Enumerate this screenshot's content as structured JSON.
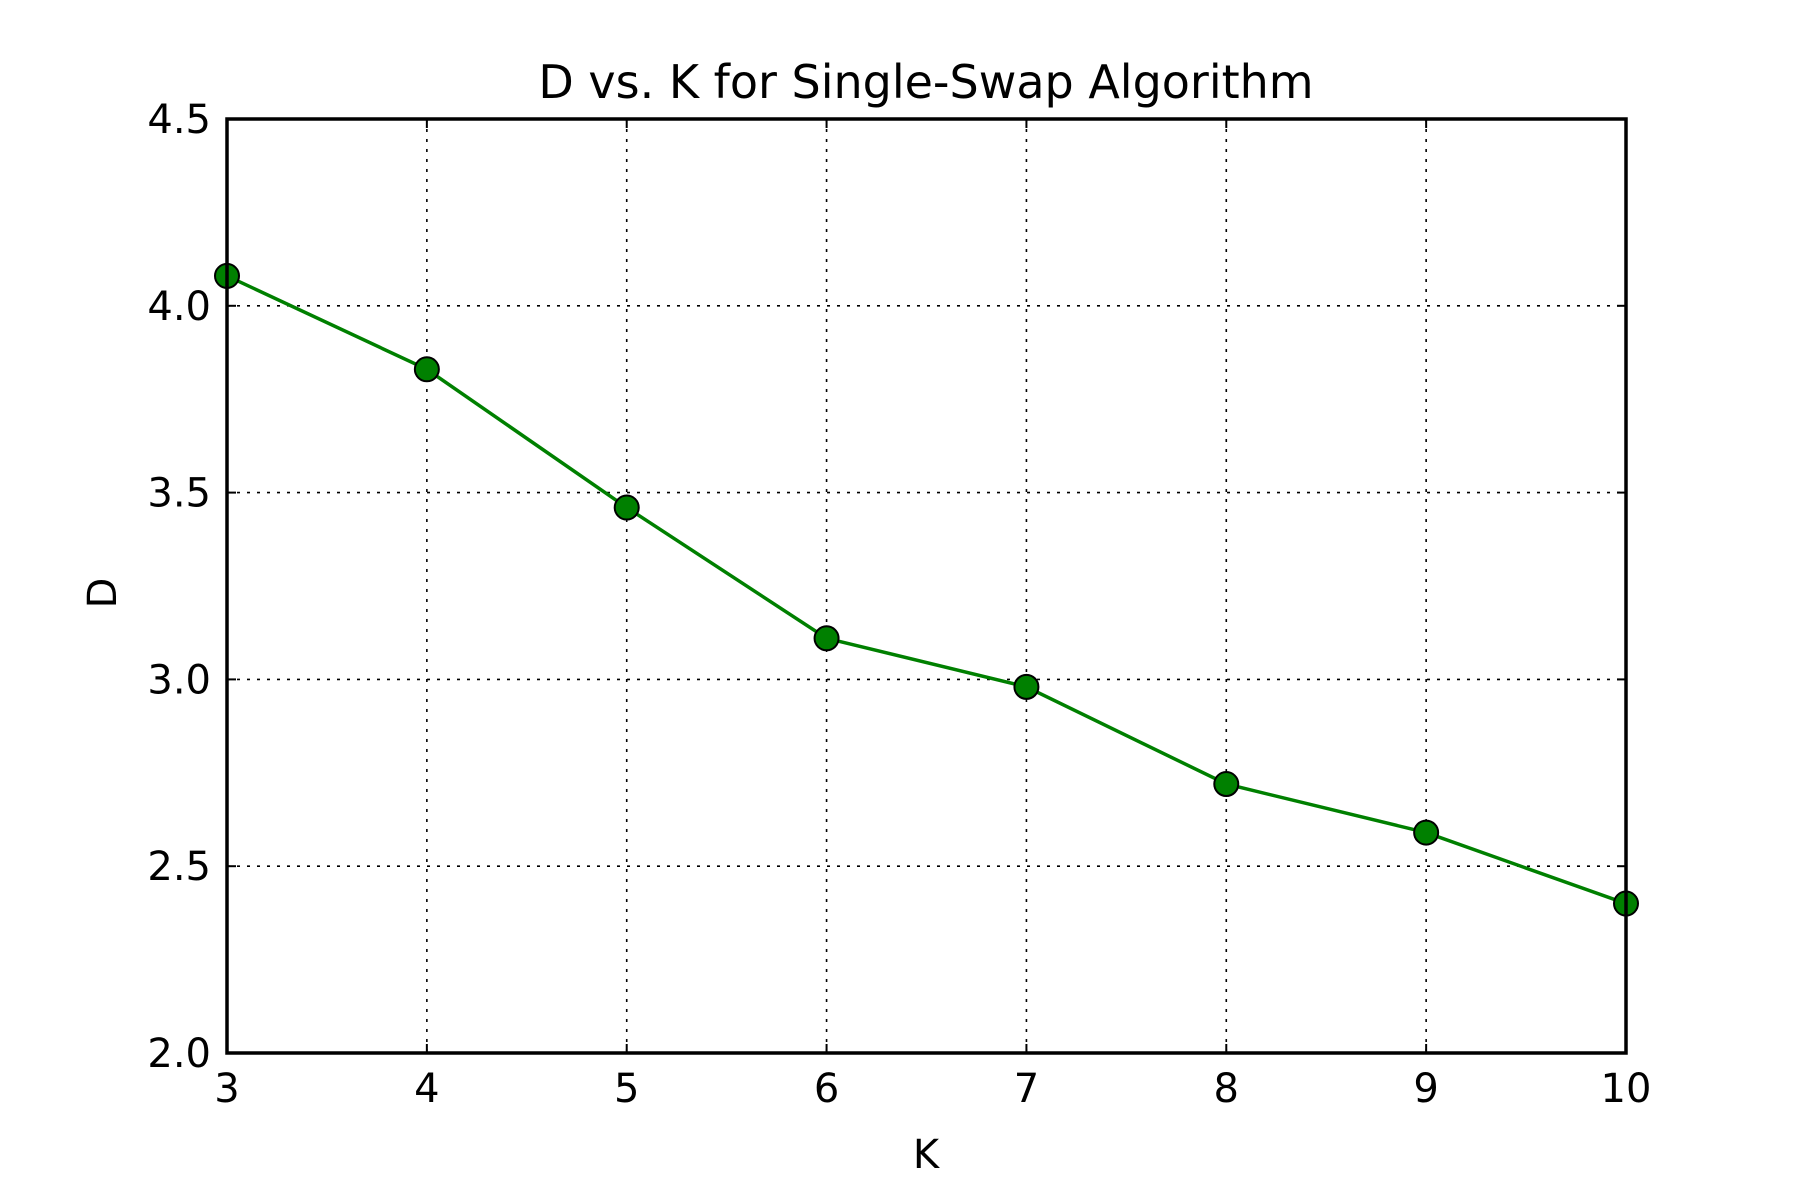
{
  "chart_data": {
    "type": "line",
    "title": "D vs. K for Single-Swap Algorithm",
    "xlabel": "K",
    "ylabel": "D",
    "x": [
      3,
      4,
      5,
      6,
      7,
      8,
      9,
      10
    ],
    "series": [
      {
        "values": [
          4.08,
          3.83,
          3.46,
          3.11,
          2.98,
          2.72,
          2.59,
          2.4
        ],
        "color": "#008000"
      }
    ],
    "xlim": [
      3,
      10
    ],
    "ylim": [
      2.0,
      4.5
    ],
    "xticks": [
      "3",
      "4",
      "5",
      "6",
      "7",
      "8",
      "9",
      "10"
    ],
    "yticks": [
      "2.0",
      "2.5",
      "3.0",
      "3.5",
      "4.0",
      "4.5"
    ],
    "grid": true,
    "marker": "circle"
  }
}
